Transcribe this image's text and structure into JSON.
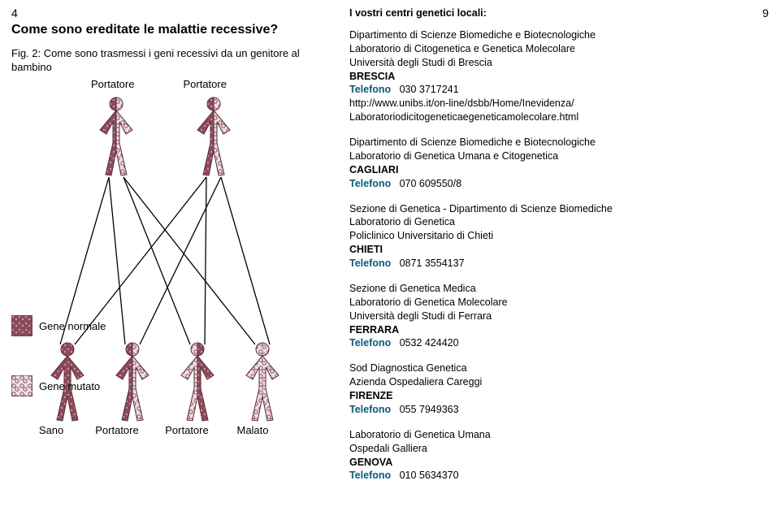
{
  "page": {
    "left_num": "4",
    "right_num": "9"
  },
  "left": {
    "heading": "Come sono ereditate le malattie recessive?",
    "fig_caption": "Fig. 2: Come sono trasmessi i geni recessivi da un genitore al bambino",
    "parent_labels": [
      "Portatore",
      "Portatore"
    ],
    "legend": {
      "normale": "Gene normale",
      "mutato": "Gene mutato"
    },
    "child_labels": [
      "Sano",
      "Portatore",
      "Portatore",
      "Malato"
    ]
  },
  "right": {
    "title": "I vostri centri genetici locali:",
    "centres": [
      {
        "lines": [
          "Dipartimento di Scienze Biomediche e Biotecnologiche",
          "Laboratorio di Citogenetica e Genetica Molecolare",
          "Università degli Studi di Brescia"
        ],
        "city": "BRESCIA",
        "phone": "030 3717241",
        "extra": [
          "http://www.unibs.it/on-line/dsbb/Home/Inevidenza/",
          "Laboratoriodicitogeneticaegeneticamolecolare.html"
        ]
      },
      {
        "lines": [
          "Dipartimento di Scienze Biomediche e Biotecnologiche",
          "Laboratorio di Genetica Umana e Citogenetica"
        ],
        "city": "CAGLIARI",
        "phone": "070 609550/8",
        "extra": []
      },
      {
        "lines": [
          "Sezione di Genetica - Dipartimento di Scienze Biomediche",
          "Laboratorio di Genetica",
          "Policlinico Universitario di Chieti"
        ],
        "city": "CHIETI",
        "phone": "0871 3554137",
        "extra": []
      },
      {
        "lines": [
          "Sezione di Genetica Medica",
          "Laboratorio di Genetica Molecolare",
          "Università degli Studi di Ferrara"
        ],
        "city": "FERRARA",
        "phone": "0532 424420",
        "extra": []
      },
      {
        "lines": [
          "Sod Diagnostica Genetica",
          "Azienda Ospedaliera Careggi"
        ],
        "city": "FIRENZE",
        "phone": "055 7949363",
        "extra": []
      },
      {
        "lines": [
          "Laboratorio di Genetica Umana",
          "Ospedali Galliera"
        ],
        "city": "GENOVA",
        "phone": "010 5634370",
        "extra": []
      }
    ],
    "tel_label": "Telefono"
  },
  "colors": {
    "fill_normal": "#8b4a5a",
    "fill_mutated": "#d1b8c0",
    "stroke": "#5a2a35",
    "line": "#000000",
    "tel": "#0a5b7a"
  }
}
